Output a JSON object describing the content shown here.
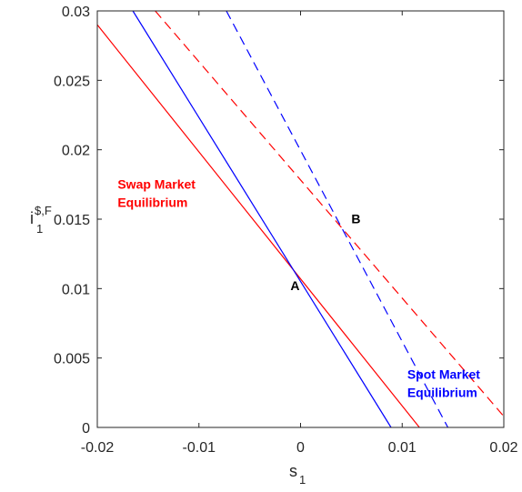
{
  "chart_data": {
    "type": "line",
    "xlabel": "s",
    "xlabel_sub": "1",
    "ylabel": "i",
    "ylabel_sup": "$,F",
    "ylabel_sub": "1",
    "xlim": [
      -0.02,
      0.02
    ],
    "ylim": [
      0,
      0.03
    ],
    "xticks": [
      -0.02,
      -0.01,
      0,
      0.01,
      0.02
    ],
    "xtick_labels": [
      "-0.02",
      "-0.01",
      "0",
      "0.01",
      "0.02"
    ],
    "yticks": [
      0,
      0.005,
      0.01,
      0.015,
      0.02,
      0.025,
      0.03
    ],
    "ytick_labels": [
      "0",
      "0.005",
      "0.01",
      "0.015",
      "0.02",
      "0.025",
      "0.03"
    ],
    "grid": false,
    "series": [
      {
        "color": "#ff0000",
        "style": "solid",
        "x": [
          -0.02,
          0.0117
        ],
        "y": [
          0.029,
          0
        ]
      },
      {
        "color": "#0000ff",
        "style": "solid",
        "x": [
          -0.0165,
          0.0089
        ],
        "y": [
          0.03,
          0
        ]
      },
      {
        "color": "#ff0000",
        "style": "dashed",
        "x": [
          -0.0143,
          0.02
        ],
        "y": [
          0.03,
          0.0008
        ]
      },
      {
        "color": "#0000ff",
        "style": "dashed",
        "x": [
          -0.0073,
          0.0145
        ],
        "y": [
          0.03,
          0
        ]
      }
    ],
    "annotations": [
      {
        "lines": [
          "Swap Market",
          "Equilibrium"
        ],
        "x": -0.018,
        "y": 0.0172,
        "color": "#ff0000"
      },
      {
        "lines": [
          "Spot Market",
          "Equilibrium"
        ],
        "x": 0.0105,
        "y": 0.0035,
        "color": "#0000ff"
      },
      {
        "lines": [
          "A"
        ],
        "x": -0.001,
        "y": 0.0099,
        "color": "#000000"
      },
      {
        "lines": [
          "B"
        ],
        "x": 0.005,
        "y": 0.0147,
        "color": "#000000"
      }
    ]
  }
}
